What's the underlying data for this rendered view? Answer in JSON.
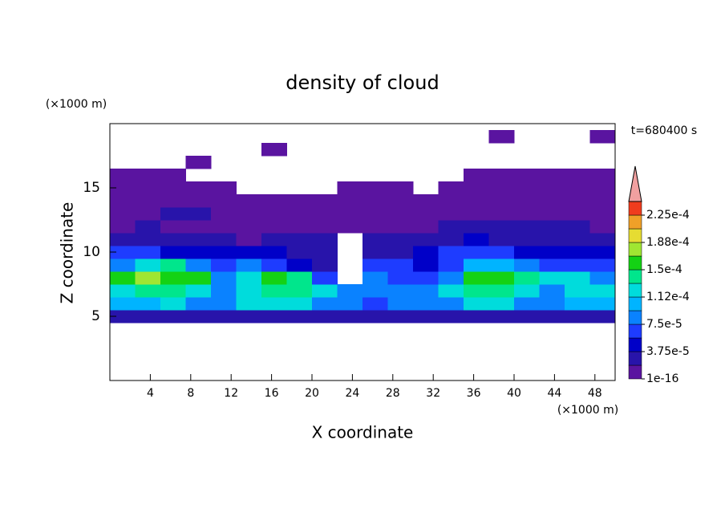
{
  "chart_data": {
    "type": "contour",
    "title": "density of cloud",
    "x_label": "X coordinate",
    "y_label": "Z coordinate",
    "x_unit": "(×1000 m)",
    "y_unit": "(×1000 m)",
    "annotation": "t=680400 s",
    "xlim": [
      0,
      50
    ],
    "ylim": [
      0,
      20
    ],
    "xticks": [
      4,
      8,
      12,
      16,
      20,
      24,
      28,
      32,
      36,
      40,
      44,
      48
    ],
    "yticks": [
      5,
      10,
      15
    ],
    "x": [
      1.25,
      3.75,
      6.25,
      8.75,
      11.25,
      13.75,
      16.25,
      18.75,
      21.25,
      23.75,
      26.25,
      28.75,
      31.25,
      33.75,
      36.25,
      38.75,
      41.25,
      43.75,
      46.25,
      48.75
    ],
    "y": [
      5,
      6,
      7,
      8,
      9,
      10,
      11,
      12,
      13,
      14,
      15,
      16,
      17,
      18,
      19
    ],
    "z": [
      [
        2.5e-05,
        2.5e-05,
        2.5e-05,
        2.5e-05,
        2.5e-05,
        2.5e-05,
        2.5e-05,
        2.5e-05,
        2.5e-05,
        2.5e-05,
        2.5e-05,
        2.5e-05,
        2.5e-05,
        2.5e-05,
        2.5e-05,
        2.5e-05,
        2.5e-05,
        2.5e-05,
        2.5e-05,
        2.5e-05
      ],
      [
        0.0001,
        0.0001,
        0.00012,
        8.5e-05,
        8.5e-05,
        0.00012,
        0.00012,
        0.00012,
        8.5e-05,
        8.5e-05,
        6.5e-05,
        8.5e-05,
        8.5e-05,
        8.5e-05,
        0.00012,
        0.00012,
        8.5e-05,
        8.5e-05,
        0.0001,
        0.0001
      ],
      [
        0.00012,
        0.00014,
        0.00014,
        0.00012,
        8.5e-05,
        0.00012,
        0.00014,
        0.00014,
        0.00012,
        8.5e-05,
        8.5e-05,
        8.5e-05,
        8.5e-05,
        0.00012,
        0.00014,
        0.00014,
        0.00012,
        8.5e-05,
        0.00012,
        0.00012
      ],
      [
        0.00016,
        0.00018,
        0.00016,
        0.00016,
        8.5e-05,
        0.00012,
        0.00016,
        0.00014,
        6.5e-05,
        null,
        8.5e-05,
        6.5e-05,
        6.5e-05,
        8.5e-05,
        0.00016,
        0.00016,
        0.00014,
        0.00012,
        0.00012,
        8.5e-05
      ],
      [
        8.5e-05,
        0.00012,
        0.00014,
        8.5e-05,
        6.5e-05,
        8.5e-05,
        6.5e-05,
        4.5e-05,
        2.5e-05,
        null,
        6.5e-05,
        6.5e-05,
        4.5e-05,
        6.5e-05,
        0.0001,
        0.0001,
        8.5e-05,
        6.5e-05,
        6.5e-05,
        6.5e-05
      ],
      [
        6.5e-05,
        6.5e-05,
        4.5e-05,
        4.5e-05,
        4.5e-05,
        4.5e-05,
        4.5e-05,
        2.5e-05,
        2.5e-05,
        null,
        2.5e-05,
        2.5e-05,
        4.5e-05,
        6.5e-05,
        6.5e-05,
        6.5e-05,
        4.5e-05,
        4.5e-05,
        4.5e-05,
        4.5e-05
      ],
      [
        2.5e-05,
        2.5e-05,
        2.5e-05,
        2.5e-05,
        2.5e-05,
        1e-05,
        2.5e-05,
        2.5e-05,
        2.5e-05,
        null,
        2.5e-05,
        2.5e-05,
        2.5e-05,
        2.5e-05,
        4.5e-05,
        2.5e-05,
        2.5e-05,
        2.5e-05,
        2.5e-05,
        2.5e-05
      ],
      [
        1e-05,
        2.5e-05,
        1e-05,
        1e-05,
        1e-05,
        1e-05,
        1e-05,
        1e-05,
        1e-05,
        1e-05,
        1e-05,
        1e-05,
        1e-05,
        2.5e-05,
        2.5e-05,
        2.5e-05,
        2.5e-05,
        2.5e-05,
        2.5e-05,
        1e-05
      ],
      [
        1e-05,
        1e-05,
        2.5e-05,
        2.5e-05,
        1e-05,
        1e-05,
        1e-05,
        1e-05,
        1e-05,
        1e-05,
        1e-05,
        1e-05,
        1e-05,
        1e-05,
        1e-05,
        1e-05,
        1e-05,
        1e-05,
        1e-05,
        1e-05
      ],
      [
        1e-05,
        1e-05,
        1e-05,
        1e-05,
        1e-05,
        1e-05,
        1e-05,
        1e-05,
        1e-05,
        1e-05,
        1e-05,
        1e-05,
        1e-05,
        1e-05,
        1e-05,
        1e-05,
        1e-05,
        1e-05,
        1e-05,
        1e-05
      ],
      [
        1e-05,
        1e-05,
        1e-05,
        1e-05,
        1e-05,
        null,
        null,
        null,
        null,
        1e-05,
        1e-05,
        1e-05,
        null,
        1e-05,
        1e-05,
        1e-05,
        1e-05,
        1e-05,
        1e-05,
        1e-05
      ],
      [
        1e-05,
        1e-05,
        1e-05,
        null,
        null,
        null,
        null,
        null,
        null,
        null,
        null,
        null,
        null,
        null,
        1e-05,
        1e-05,
        1e-05,
        1e-05,
        1e-05,
        1e-05
      ],
      [
        null,
        null,
        null,
        1e-05,
        null,
        null,
        null,
        null,
        null,
        null,
        null,
        null,
        null,
        null,
        null,
        null,
        null,
        null,
        null,
        null
      ],
      [
        null,
        null,
        null,
        null,
        null,
        null,
        1e-05,
        null,
        null,
        null,
        null,
        null,
        null,
        null,
        null,
        null,
        null,
        null,
        null,
        null
      ],
      [
        null,
        null,
        null,
        null,
        null,
        null,
        null,
        null,
        null,
        null,
        null,
        null,
        null,
        null,
        null,
        1e-05,
        null,
        null,
        null,
        1e-05
      ]
    ],
    "colorbar": {
      "levels": [
        1e-16,
        1.875e-05,
        3.75e-05,
        5.625e-05,
        7.5e-05,
        9.375e-05,
        0.0001125,
        0.00013125,
        0.00015,
        0.00016875,
        0.0001875,
        0.00020625,
        0.000225,
        0.00024375
      ],
      "colors": [
        "#5a14a0",
        "#2814aa",
        "#0000c8",
        "#1e3cff",
        "#0a82ff",
        "#00b4ff",
        "#00dcdc",
        "#00e68c",
        "#14d214",
        "#a0e632",
        "#e6dc32",
        "#f0a028",
        "#f03c1e"
      ],
      "extend_color": "#f0a0a0",
      "ticks": [
        {
          "value": 1e-16,
          "label": "1e-16"
        },
        {
          "value": 3.75e-05,
          "label": "3.75e-5"
        },
        {
          "value": 7.5e-05,
          "label": "7.5e-5"
        },
        {
          "value": 0.0001125,
          "label": "1.12e-4"
        },
        {
          "value": 0.00015,
          "label": "1.5e-4"
        },
        {
          "value": 0.0001875,
          "label": "1.88e-4"
        },
        {
          "value": 0.000225,
          "label": "2.25e-4"
        }
      ]
    }
  }
}
